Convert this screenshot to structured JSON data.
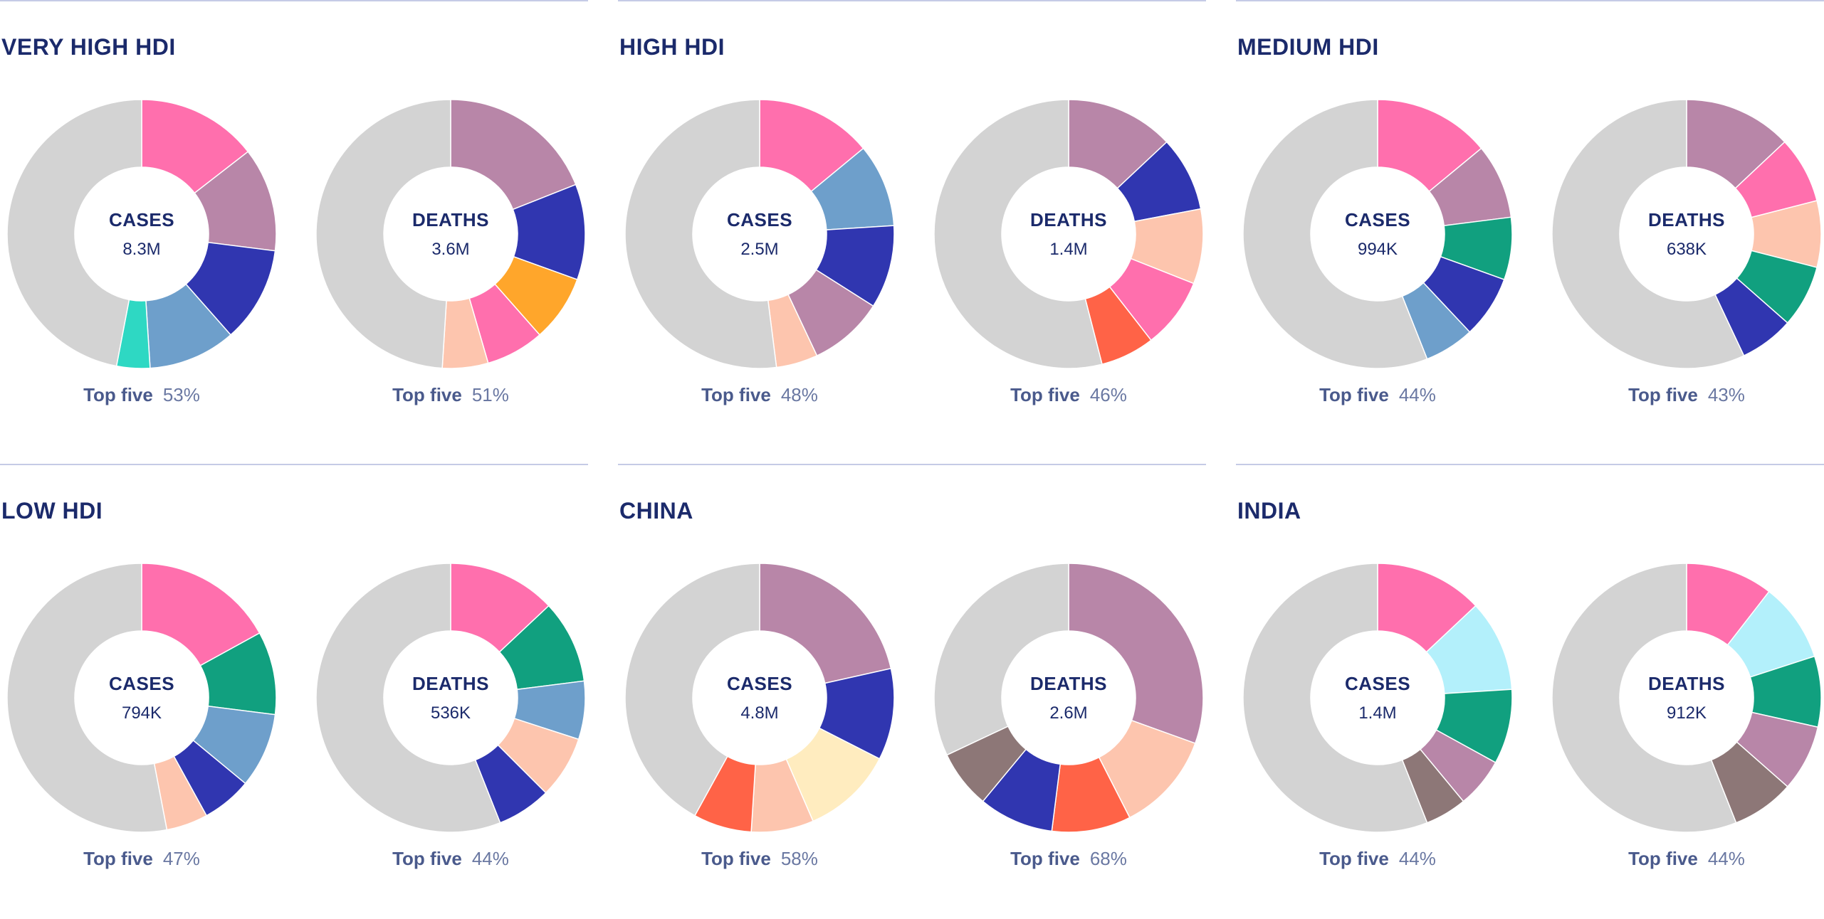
{
  "colors": {
    "remainder": "#d3d3d3",
    "title": "#1b2a6b",
    "rule": "#c5cbe6",
    "palette": {
      "pink": "#ff6fad",
      "mauve": "#b886a8",
      "navy": "#3036b0",
      "steel": "#6e9fcb",
      "teal": "#2ed8c3",
      "orange": "#ffa62b",
      "peach": "#fdc5ae",
      "green": "#11a07f",
      "coral": "#ff6347",
      "cream": "#ffecbf",
      "taupe": "#8d7777",
      "cyan": "#b3f0fb"
    }
  },
  "top_five_label": "Top five",
  "chart_data": [
    {
      "type": "pie",
      "title": "VERY HIGH HDI",
      "charts": [
        {
          "label": "CASES",
          "value": "8.3M",
          "top_five": "53%",
          "slices": [
            {
              "color": "pink",
              "value": 14.5
            },
            {
              "color": "mauve",
              "value": 12.5
            },
            {
              "color": "navy",
              "value": 11.5
            },
            {
              "color": "steel",
              "value": 10.5
            },
            {
              "color": "teal",
              "value": 4
            }
          ]
        },
        {
          "label": "DEATHS",
          "value": "3.6M",
          "top_five": "51%",
          "slices": [
            {
              "color": "mauve",
              "value": 19
            },
            {
              "color": "navy",
              "value": 11.5
            },
            {
              "color": "orange",
              "value": 8
            },
            {
              "color": "pink",
              "value": 7
            },
            {
              "color": "peach",
              "value": 5.5
            }
          ]
        }
      ]
    },
    {
      "type": "pie",
      "title": "HIGH HDI",
      "charts": [
        {
          "label": "CASES",
          "value": "2.5M",
          "top_five": "48%",
          "slices": [
            {
              "color": "pink",
              "value": 14
            },
            {
              "color": "steel",
              "value": 10
            },
            {
              "color": "navy",
              "value": 10
            },
            {
              "color": "mauve",
              "value": 9
            },
            {
              "color": "peach",
              "value": 5
            }
          ]
        },
        {
          "label": "DEATHS",
          "value": "1.4M",
          "top_five": "46%",
          "slices": [
            {
              "color": "mauve",
              "value": 13
            },
            {
              "color": "navy",
              "value": 9
            },
            {
              "color": "peach",
              "value": 9
            },
            {
              "color": "pink",
              "value": 8.5
            },
            {
              "color": "coral",
              "value": 6.5
            }
          ]
        }
      ]
    },
    {
      "type": "pie",
      "title": "MEDIUM HDI",
      "charts": [
        {
          "label": "CASES",
          "value": "994K",
          "top_five": "44%",
          "slices": [
            {
              "color": "pink",
              "value": 14
            },
            {
              "color": "mauve",
              "value": 9
            },
            {
              "color": "green",
              "value": 7.5
            },
            {
              "color": "navy",
              "value": 7.5
            },
            {
              "color": "steel",
              "value": 6
            }
          ]
        },
        {
          "label": "DEATHS",
          "value": "638K",
          "top_five": "43%",
          "slices": [
            {
              "color": "mauve",
              "value": 13
            },
            {
              "color": "pink",
              "value": 8
            },
            {
              "color": "peach",
              "value": 8
            },
            {
              "color": "green",
              "value": 7.5
            },
            {
              "color": "navy",
              "value": 6.5
            }
          ]
        }
      ]
    },
    {
      "type": "pie",
      "title": "LOW HDI",
      "charts": [
        {
          "label": "CASES",
          "value": "794K",
          "top_five": "47%",
          "slices": [
            {
              "color": "pink",
              "value": 17
            },
            {
              "color": "green",
              "value": 10
            },
            {
              "color": "steel",
              "value": 9
            },
            {
              "color": "navy",
              "value": 6
            },
            {
              "color": "peach",
              "value": 5
            }
          ]
        },
        {
          "label": "DEATHS",
          "value": "536K",
          "top_five": "44%",
          "slices": [
            {
              "color": "pink",
              "value": 13
            },
            {
              "color": "green",
              "value": 10
            },
            {
              "color": "steel",
              "value": 7
            },
            {
              "color": "peach",
              "value": 7.5
            },
            {
              "color": "navy",
              "value": 6.5
            }
          ]
        }
      ]
    },
    {
      "type": "pie",
      "title": "CHINA",
      "charts": [
        {
          "label": "CASES",
          "value": "4.8M",
          "top_five": "58%",
          "slices": [
            {
              "color": "mauve",
              "value": 21.5
            },
            {
              "color": "navy",
              "value": 11
            },
            {
              "color": "cream",
              "value": 11
            },
            {
              "color": "peach",
              "value": 7.5
            },
            {
              "color": "coral",
              "value": 7
            }
          ]
        },
        {
          "label": "DEATHS",
          "value": "2.6M",
          "top_five": "68%",
          "slices": [
            {
              "color": "mauve",
              "value": 30.5
            },
            {
              "color": "peach",
              "value": 12
            },
            {
              "color": "coral",
              "value": 9.5
            },
            {
              "color": "navy",
              "value": 9
            },
            {
              "color": "taupe",
              "value": 7
            }
          ]
        }
      ]
    },
    {
      "type": "pie",
      "title": "INDIA",
      "charts": [
        {
          "label": "CASES",
          "value": "1.4M",
          "top_five": "44%",
          "slices": [
            {
              "color": "pink",
              "value": 13
            },
            {
              "color": "cyan",
              "value": 11
            },
            {
              "color": "green",
              "value": 9
            },
            {
              "color": "mauve",
              "value": 6
            },
            {
              "color": "taupe",
              "value": 5
            }
          ]
        },
        {
          "label": "DEATHS",
          "value": "912K",
          "top_five": "44%",
          "slices": [
            {
              "color": "pink",
              "value": 10.5
            },
            {
              "color": "cyan",
              "value": 9.5
            },
            {
              "color": "green",
              "value": 8.5
            },
            {
              "color": "mauve",
              "value": 8
            },
            {
              "color": "taupe",
              "value": 7.5
            }
          ]
        }
      ]
    }
  ]
}
